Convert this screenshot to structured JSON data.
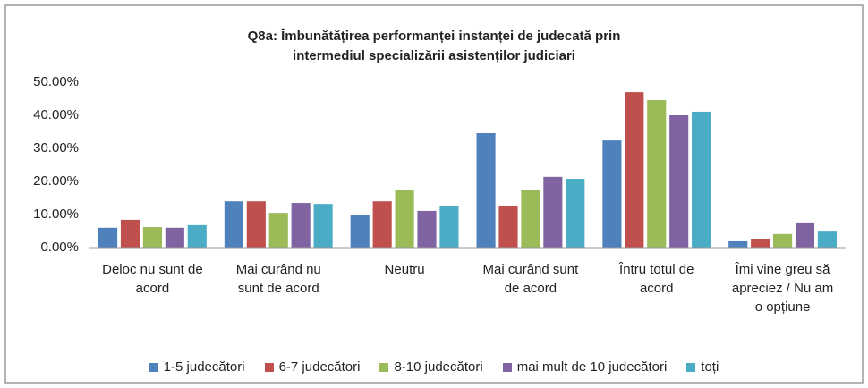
{
  "chart_data": {
    "type": "bar",
    "title": "Q8a: Îmbunătățirea performanței instanței de judecată prin intermediul specializării asistenților judiciari",
    "categories": [
      "Deloc nu sunt de acord",
      "Mai curând nu sunt de acord",
      "Neutru",
      "Mai curând sunt de acord",
      "Întru totul de acord",
      "Îmi vine greu să apreciez / Nu am o opțiune"
    ],
    "series": [
      {
        "name": "1-5 judecători",
        "color": "#4f81bd",
        "values": [
          6,
          14,
          10,
          34.6,
          32.4,
          1.9
        ]
      },
      {
        "name": "6-7 judecători",
        "color": "#c0504d",
        "values": [
          8.4,
          14,
          14,
          12.7,
          47,
          2.7
        ]
      },
      {
        "name": "8-10 judecători",
        "color": "#9bbb59",
        "values": [
          6.2,
          10.5,
          17.3,
          17.3,
          44.6,
          4.1
        ]
      },
      {
        "name": "mai mult de 10 judecători",
        "color": "#8064a2",
        "values": [
          6,
          13.5,
          11.1,
          21.4,
          40,
          7.6
        ]
      },
      {
        "name": "toți",
        "color": "#4bacc6",
        "values": [
          6.8,
          13.2,
          12.7,
          20.8,
          41.1,
          5.1
        ]
      }
    ],
    "ylim": [
      0,
      50
    ],
    "yticks": [
      {
        "value": 0,
        "label": "0.00%"
      },
      {
        "value": 10,
        "label": "10.00%"
      },
      {
        "value": 20,
        "label": "20.00%"
      },
      {
        "value": 30,
        "label": "30.00%"
      },
      {
        "value": 40,
        "label": "40.00%"
      },
      {
        "value": 50,
        "label": "50.00%"
      }
    ],
    "grid": false,
    "legend": "bottom"
  }
}
